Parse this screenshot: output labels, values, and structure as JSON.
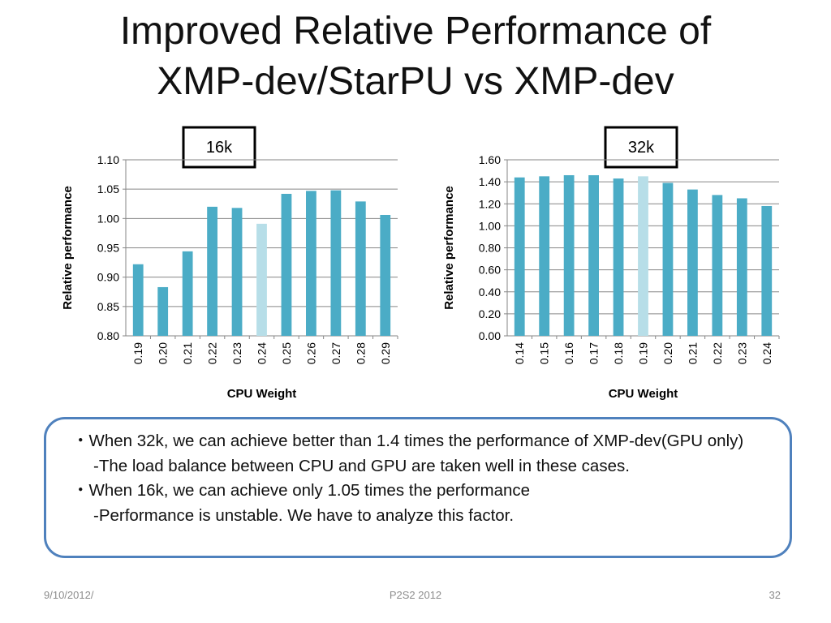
{
  "slide": {
    "title_line1": "Improved Relative Performance of",
    "title_line2": "XMP-dev/StarPU vs XMP-dev"
  },
  "colors": {
    "bar": "#4bacc6",
    "highlight_bar": "#b7dee8",
    "callout_border": "#4f81bd",
    "grid": "#868686"
  },
  "chart_data": [
    {
      "type": "bar",
      "title": "16k",
      "xlabel": "CPU Weight",
      "ylabel": "Relative performance",
      "ylim": [
        0.8,
        1.1
      ],
      "yticks": [
        "0.80",
        "0.85",
        "0.90",
        "0.95",
        "1.00",
        "1.05",
        "1.10"
      ],
      "categories": [
        "0.19",
        "0.20",
        "0.21",
        "0.22",
        "0.23",
        "0.24",
        "0.25",
        "0.26",
        "0.27",
        "0.28",
        "0.29"
      ],
      "values": [
        0.922,
        0.883,
        0.944,
        1.02,
        1.018,
        0.991,
        1.042,
        1.047,
        1.048,
        1.029,
        1.006
      ],
      "highlight_index": 5,
      "grid": true
    },
    {
      "type": "bar",
      "title": "32k",
      "xlabel": "CPU Weight",
      "ylabel": "Relative performance",
      "ylim": [
        0.0,
        1.6
      ],
      "yticks": [
        "0.00",
        "0.20",
        "0.40",
        "0.60",
        "0.80",
        "1.00",
        "1.20",
        "1.40",
        "1.60"
      ],
      "categories": [
        "0.14",
        "0.15",
        "0.16",
        "0.17",
        "0.18",
        "0.19",
        "0.20",
        "0.21",
        "0.22",
        "0.23",
        "0.24"
      ],
      "values": [
        1.44,
        1.45,
        1.46,
        1.46,
        1.43,
        1.45,
        1.39,
        1.33,
        1.28,
        1.25,
        1.18
      ],
      "highlight_index": 5,
      "grid": true
    }
  ],
  "callout": {
    "line1": "・When 32k, we can achieve better than 1.4 times the performance of XMP-dev(GPU only)",
    "line2": "-The load balance between CPU and GPU are taken well in these cases.",
    "line3": "・When 16k, we can achieve only 1.05 times the performance",
    "line4": "-Performance is unstable. We have to analyze this factor."
  },
  "footer": {
    "date": "9/10/2012/",
    "center": "P2S2 2012",
    "page": "32"
  }
}
